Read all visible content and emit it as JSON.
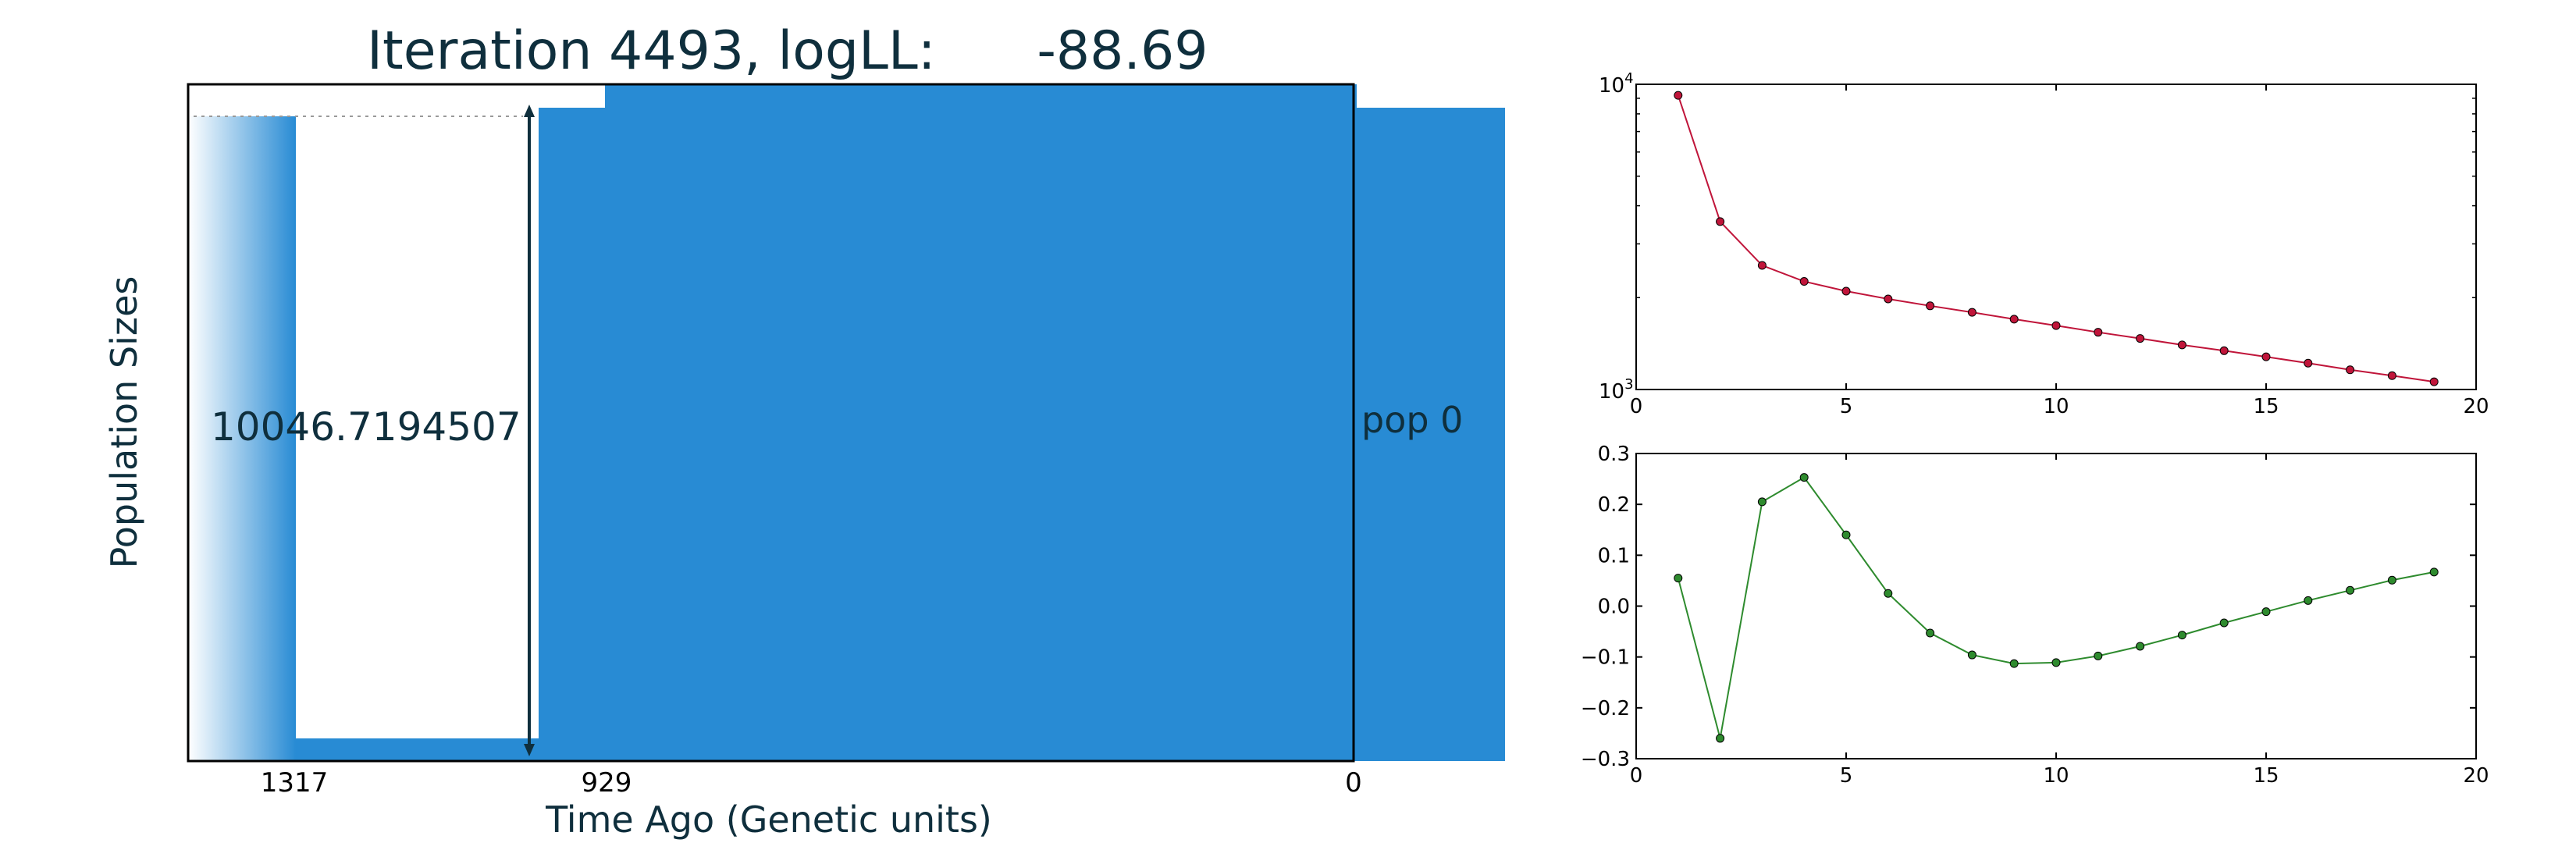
{
  "chart_data": [
    {
      "type": "area",
      "title": "Iteration 4493, logLL:      -88.69",
      "xlabel": "Time Ago (Genetic units)",
      "ylabel": "Population Sizes",
      "x_ticks": [
        "1317",
        "929",
        "0"
      ],
      "x_direction": "time decreases left to right",
      "population_label": "pop 0",
      "size_annotation": "10046.7194507",
      "color": "#288BD4"
    },
    {
      "type": "line",
      "yscale": "log",
      "xlim": [
        0,
        20
      ],
      "ylim": [
        1000,
        10000
      ],
      "x_ticks": [
        "0",
        "5",
        "10",
        "15",
        "20"
      ],
      "y_ticks": [
        {
          "base": "10",
          "exp": "4",
          "value": 10000
        },
        {
          "base": "10",
          "exp": "3",
          "value": 1000
        }
      ],
      "color": "#C0153A",
      "series": [
        {
          "x": [
            1,
            2,
            3,
            4,
            5,
            6,
            7,
            8,
            9,
            10,
            11,
            12,
            13,
            14,
            15,
            16,
            17,
            18,
            19
          ],
          "values": [
            9200,
            3550,
            2550,
            2260,
            2100,
            1980,
            1880,
            1790,
            1700,
            1620,
            1540,
            1470,
            1400,
            1340,
            1280,
            1220,
            1160,
            1110,
            1060
          ]
        }
      ]
    },
    {
      "type": "line",
      "xlim": [
        0,
        20
      ],
      "ylim": [
        -0.3,
        0.3
      ],
      "x_ticks": [
        "0",
        "5",
        "10",
        "15",
        "20"
      ],
      "y_ticks": [
        "0.3",
        "0.2",
        "0.1",
        "0.0",
        "−0.1",
        "−0.2",
        "−0.3"
      ],
      "color": "#2E8B2E",
      "series": [
        {
          "x": [
            1,
            2,
            3,
            4,
            5,
            6,
            7,
            8,
            9,
            10,
            11,
            12,
            13,
            14,
            15,
            16,
            17,
            18,
            19
          ],
          "values": [
            0.055,
            -0.26,
            0.205,
            0.253,
            0.14,
            0.025,
            -0.053,
            -0.096,
            -0.113,
            -0.111,
            -0.098,
            -0.079,
            -0.057,
            -0.033,
            -0.011,
            0.011,
            0.031,
            0.051,
            0.067
          ]
        }
      ]
    }
  ]
}
